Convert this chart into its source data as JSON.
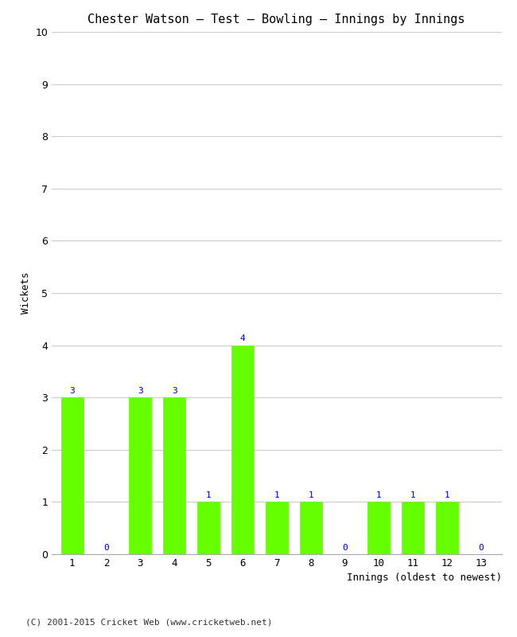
{
  "title": "Chester Watson – Test – Bowling – Innings by Innings",
  "xlabel": "Innings (oldest to newest)",
  "ylabel": "Wickets",
  "categories": [
    "1",
    "2",
    "3",
    "4",
    "5",
    "6",
    "7",
    "8",
    "9",
    "10",
    "11",
    "12",
    "13"
  ],
  "values": [
    3,
    0,
    3,
    3,
    1,
    4,
    1,
    1,
    0,
    1,
    1,
    1,
    0
  ],
  "bar_color": "#66ff00",
  "bar_edge_color": "#66ff00",
  "label_color": "#0000cc",
  "ylim": [
    0,
    10
  ],
  "yticks": [
    0,
    1,
    2,
    3,
    4,
    5,
    6,
    7,
    8,
    9,
    10
  ],
  "bg_color": "#ffffff",
  "grid_color": "#cccccc",
  "title_fontsize": 11,
  "axis_label_fontsize": 9,
  "tick_fontsize": 9,
  "bar_label_fontsize": 8,
  "footer": "(C) 2001-2015 Cricket Web (www.cricketweb.net)"
}
